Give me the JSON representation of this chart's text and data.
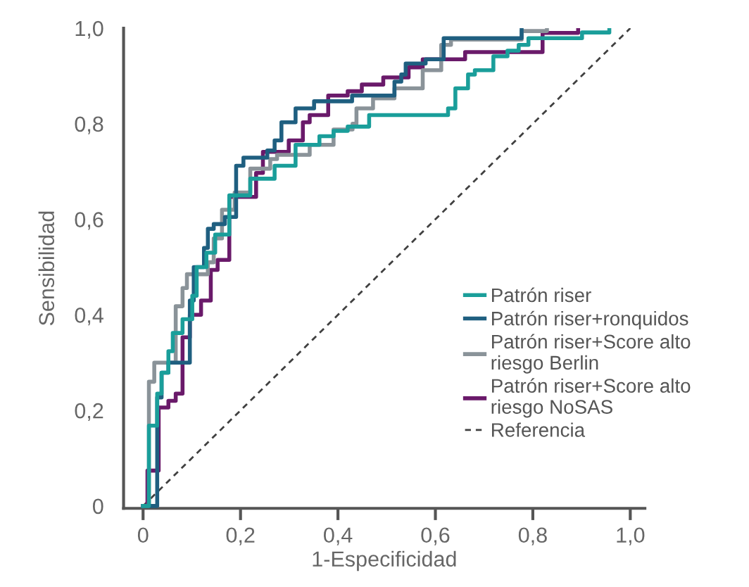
{
  "chart_data": {
    "type": "line",
    "xlabel": "1-Especificidad",
    "ylabel": "Sensibilidad",
    "xlim": [
      -0.04,
      1.03
    ],
    "ylim": [
      -0.005,
      1.0
    ],
    "xticks": [
      {
        "value": 0,
        "label": "0"
      },
      {
        "value": 0.2,
        "label": "0,2"
      },
      {
        "value": 0.4,
        "label": "0,4"
      },
      {
        "value": 0.6,
        "label": "0,6"
      },
      {
        "value": 0.8,
        "label": "0,8"
      },
      {
        "value": 1.0,
        "label": "1,0"
      }
    ],
    "yticks": [
      {
        "value": 0,
        "label": "0"
      },
      {
        "value": 0.2,
        "label": "0,2"
      },
      {
        "value": 0.4,
        "label": "0,4"
      },
      {
        "value": 0.6,
        "label": "0,6"
      },
      {
        "value": 0.8,
        "label": "0,8"
      },
      {
        "value": 1.0,
        "label": "1,0"
      }
    ],
    "grid": false,
    "legend": "right",
    "marker": "none",
    "series": [
      {
        "name": "Patrón riser",
        "color": "#1a9e9a",
        "line_style": "solid",
        "x": [
          0,
          0.012,
          0.012,
          0.029,
          0.029,
          0.038,
          0.038,
          0.052,
          0.052,
          0.061,
          0.061,
          0.081,
          0.081,
          0.101,
          0.101,
          0.11,
          0.11,
          0.13,
          0.13,
          0.148,
          0.148,
          0.177,
          0.177,
          0.22,
          0.22,
          0.27,
          0.27,
          0.313,
          0.313,
          0.362,
          0.362,
          0.391,
          0.391,
          0.42,
          0.42,
          0.464,
          0.464,
          0.626,
          0.626,
          0.641,
          0.641,
          0.667,
          0.667,
          0.681,
          0.681,
          0.719,
          0.719,
          0.748,
          0.748,
          0.771,
          0.771,
          0.791,
          0.791,
          0.901,
          0.901,
          0.957,
          0.957
        ],
        "values": [
          0,
          0,
          0.168,
          0.168,
          0.235,
          0.235,
          0.279,
          0.279,
          0.324,
          0.324,
          0.362,
          0.362,
          0.391,
          0.391,
          0.44,
          0.44,
          0.5,
          0.5,
          0.53,
          0.53,
          0.568,
          0.568,
          0.65,
          0.65,
          0.685,
          0.685,
          0.712,
          0.712,
          0.756,
          0.756,
          0.774,
          0.774,
          0.785,
          0.785,
          0.794,
          0.794,
          0.818,
          0.818,
          0.832,
          0.832,
          0.874,
          0.874,
          0.903,
          0.903,
          0.912,
          0.912,
          0.941,
          0.941,
          0.953,
          0.953,
          0.965,
          0.965,
          0.979,
          0.979,
          0.991,
          0.991,
          1.0
        ]
      },
      {
        "name": "Patrón riser+ronquidos",
        "color": "#1f5f80",
        "line_style": "solid",
        "x": [
          0,
          0.029,
          0.029,
          0.038,
          0.038,
          0.052,
          0.052,
          0.096,
          0.096,
          0.104,
          0.104,
          0.125,
          0.125,
          0.133,
          0.133,
          0.145,
          0.145,
          0.168,
          0.168,
          0.191,
          0.191,
          0.206,
          0.206,
          0.255,
          0.255,
          0.27,
          0.27,
          0.284,
          0.284,
          0.313,
          0.313,
          0.351,
          0.351,
          0.429,
          0.429,
          0.516,
          0.516,
          0.53,
          0.53,
          0.539,
          0.539,
          0.58,
          0.58,
          0.617,
          0.617,
          0.777,
          0.777
        ],
        "values": [
          0,
          0,
          0.227,
          0.227,
          0.279,
          0.279,
          0.3,
          0.3,
          0.43,
          0.43,
          0.5,
          0.5,
          0.54,
          0.54,
          0.58,
          0.58,
          0.59,
          0.59,
          0.605,
          0.605,
          0.712,
          0.712,
          0.729,
          0.729,
          0.744,
          0.744,
          0.765,
          0.765,
          0.803,
          0.803,
          0.832,
          0.832,
          0.847,
          0.847,
          0.859,
          0.859,
          0.888,
          0.888,
          0.903,
          0.903,
          0.926,
          0.926,
          0.935,
          0.935,
          0.979,
          0.979,
          1.0
        ]
      },
      {
        "name": "Patrón riser+Score alto\nriesgo Berlin",
        "color": "#8a9399",
        "line_style": "solid",
        "x": [
          0,
          0.012,
          0.012,
          0.023,
          0.023,
          0.067,
          0.067,
          0.081,
          0.081,
          0.09,
          0.09,
          0.133,
          0.133,
          0.145,
          0.145,
          0.162,
          0.162,
          0.188,
          0.188,
          0.22,
          0.22,
          0.261,
          0.261,
          0.275,
          0.275,
          0.342,
          0.342,
          0.391,
          0.391,
          0.43,
          0.43,
          0.438,
          0.438,
          0.472,
          0.472,
          0.516,
          0.516,
          0.574,
          0.574,
          0.612,
          0.612,
          0.632,
          0.632,
          0.777,
          0.777,
          0.829,
          0.829
        ],
        "values": [
          0,
          0,
          0.26,
          0.26,
          0.3,
          0.3,
          0.418,
          0.418,
          0.456,
          0.456,
          0.485,
          0.485,
          0.51,
          0.51,
          0.56,
          0.56,
          0.62,
          0.62,
          0.656,
          0.656,
          0.706,
          0.706,
          0.726,
          0.726,
          0.735,
          0.735,
          0.756,
          0.756,
          0.788,
          0.788,
          0.8,
          0.8,
          0.832,
          0.832,
          0.853,
          0.853,
          0.874,
          0.874,
          0.912,
          0.912,
          0.965,
          0.965,
          0.976,
          0.976,
          0.994,
          0.994,
          1.0
        ]
      },
      {
        "name": "Patrón riser+Score alto\nriesgo NoSAS",
        "color": "#6a1a6a",
        "line_style": "solid",
        "x": [
          0,
          0.009,
          0.009,
          0.032,
          0.032,
          0.052,
          0.052,
          0.067,
          0.067,
          0.081,
          0.081,
          0.096,
          0.096,
          0.119,
          0.119,
          0.139,
          0.139,
          0.153,
          0.153,
          0.177,
          0.177,
          0.232,
          0.232,
          0.246,
          0.246,
          0.299,
          0.299,
          0.328,
          0.328,
          0.342,
          0.342,
          0.38,
          0.38,
          0.42,
          0.42,
          0.449,
          0.449,
          0.493,
          0.493,
          0.545,
          0.545,
          0.574,
          0.574,
          0.661,
          0.661,
          0.82,
          0.82,
          0.893,
          0.893
        ],
        "values": [
          0,
          0,
          0.074,
          0.074,
          0.206,
          0.206,
          0.22,
          0.22,
          0.235,
          0.235,
          0.353,
          0.353,
          0.4,
          0.4,
          0.43,
          0.43,
          0.494,
          0.494,
          0.515,
          0.515,
          0.647,
          0.647,
          0.697,
          0.697,
          0.741,
          0.741,
          0.765,
          0.765,
          0.803,
          0.803,
          0.818,
          0.818,
          0.859,
          0.859,
          0.868,
          0.868,
          0.882,
          0.882,
          0.897,
          0.897,
          0.918,
          0.918,
          0.935,
          0.935,
          0.95,
          0.95,
          0.99,
          0.99,
          1.0
        ]
      },
      {
        "name": "Referencia",
        "color": "#404040",
        "line_style": "dashed",
        "x": [
          0,
          1
        ],
        "values": [
          0,
          1
        ]
      }
    ]
  }
}
